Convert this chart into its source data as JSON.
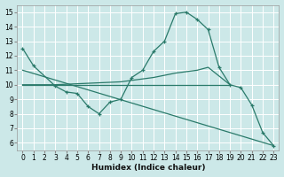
{
  "xlabel": "Humidex (Indice chaleur)",
  "background_color": "#cce8e8",
  "grid_color": "#ffffff",
  "line_color": "#2a7a6a",
  "xlim": [
    -0.5,
    23.5
  ],
  "ylim": [
    5.5,
    15.5
  ],
  "xticks": [
    0,
    1,
    2,
    3,
    4,
    5,
    6,
    7,
    8,
    9,
    10,
    11,
    12,
    13,
    14,
    15,
    16,
    17,
    18,
    19,
    20,
    21,
    22,
    23
  ],
  "yticks": [
    6,
    7,
    8,
    9,
    10,
    11,
    12,
    13,
    14,
    15
  ],
  "series1_x": [
    0,
    1,
    3,
    4,
    5,
    6,
    7,
    8,
    9,
    10,
    11,
    12,
    13,
    14,
    15,
    16,
    17,
    18,
    19,
    20,
    21,
    22,
    23
  ],
  "series1_y": [
    12.5,
    11.3,
    9.9,
    9.5,
    9.4,
    8.5,
    8.0,
    8.8,
    9.0,
    10.5,
    11.0,
    12.3,
    13.0,
    14.9,
    15.0,
    14.5,
    13.8,
    11.2,
    10.0,
    9.8,
    8.6,
    6.7,
    5.8
  ],
  "series2_x": [
    0,
    19
  ],
  "series2_y": [
    10.0,
    10.0
  ],
  "series3_x": [
    0,
    23
  ],
  "series3_y": [
    11.0,
    5.8
  ],
  "series4_x": [
    0,
    3,
    9,
    12,
    14,
    16,
    17,
    19
  ],
  "series4_y": [
    10.0,
    10.0,
    10.2,
    10.5,
    10.8,
    11.0,
    11.2,
    10.0
  ]
}
